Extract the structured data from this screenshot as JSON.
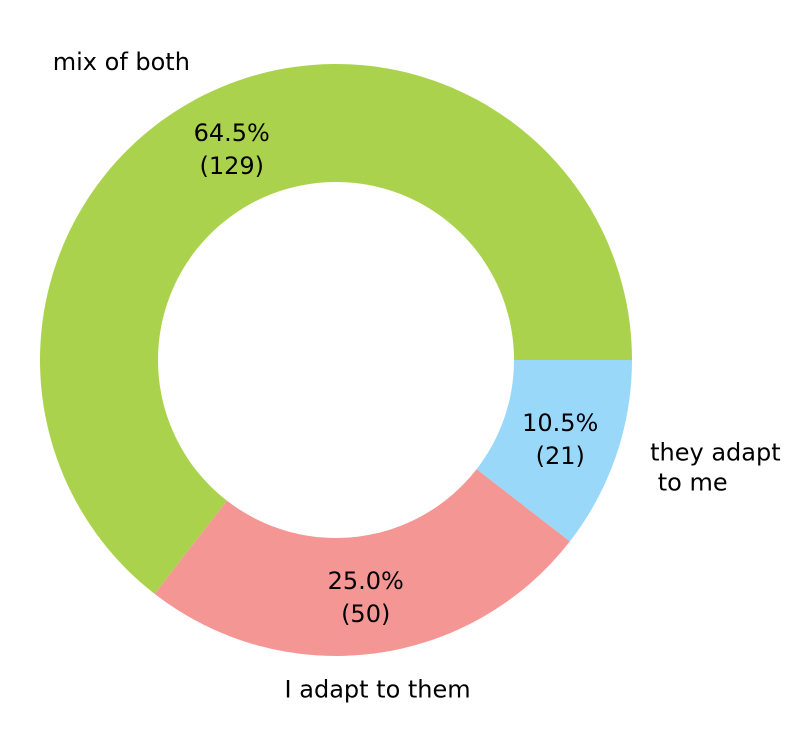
{
  "chart_data": {
    "type": "pie",
    "donut": true,
    "categories": [
      "mix of both",
      "I adapt to them",
      "they adapt to me"
    ],
    "category_lines": [
      [
        "mix of both"
      ],
      [
        "I adapt to them"
      ],
      [
        "they adapt",
        " to me"
      ]
    ],
    "values": [
      129,
      50,
      21
    ],
    "percent_labels": [
      "64.5%",
      "25.0%",
      "10.5%"
    ],
    "count_labels": [
      "(129)",
      "(50)",
      "(21)"
    ],
    "colors": [
      "#abd24d",
      "#f49694",
      "#9ad8fa"
    ],
    "start": "3 o'clock",
    "direction": "counterclockwise",
    "legend": "none"
  }
}
